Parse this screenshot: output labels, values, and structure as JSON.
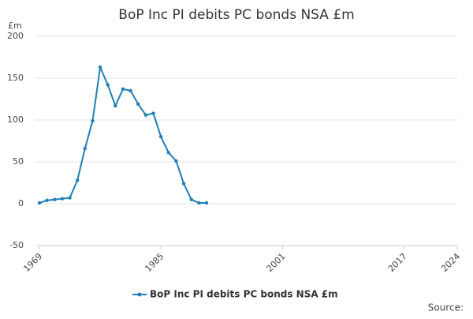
{
  "chart_data": {
    "type": "line",
    "title": "BoP Inc PI debits PC bonds NSA £m",
    "y_label": "£m",
    "source": "Source:",
    "x": [
      1969,
      1970,
      1971,
      1972,
      1973,
      1974,
      1975,
      1976,
      1977,
      1978,
      1979,
      1980,
      1981,
      1982,
      1983,
      1984,
      1985,
      1986,
      1987,
      1988,
      1989,
      1990,
      1991
    ],
    "series": [
      {
        "name": "BoP Inc PI debits PC bonds NSA £m",
        "color": "#1f7fb6",
        "values": [
          1,
          4,
          5,
          6,
          7,
          28,
          66,
          99,
          163,
          142,
          117,
          137,
          135,
          119,
          106,
          108,
          80,
          61,
          51,
          24,
          5,
          1,
          1
        ]
      }
    ],
    "xlim": [
      1969,
      2024
    ],
    "xticks": [
      1969,
      1985,
      2001,
      2017,
      2024
    ],
    "ylim": [
      -50,
      200
    ],
    "yticks": [
      -50,
      0,
      50,
      100,
      150,
      200
    ],
    "grid": true
  }
}
